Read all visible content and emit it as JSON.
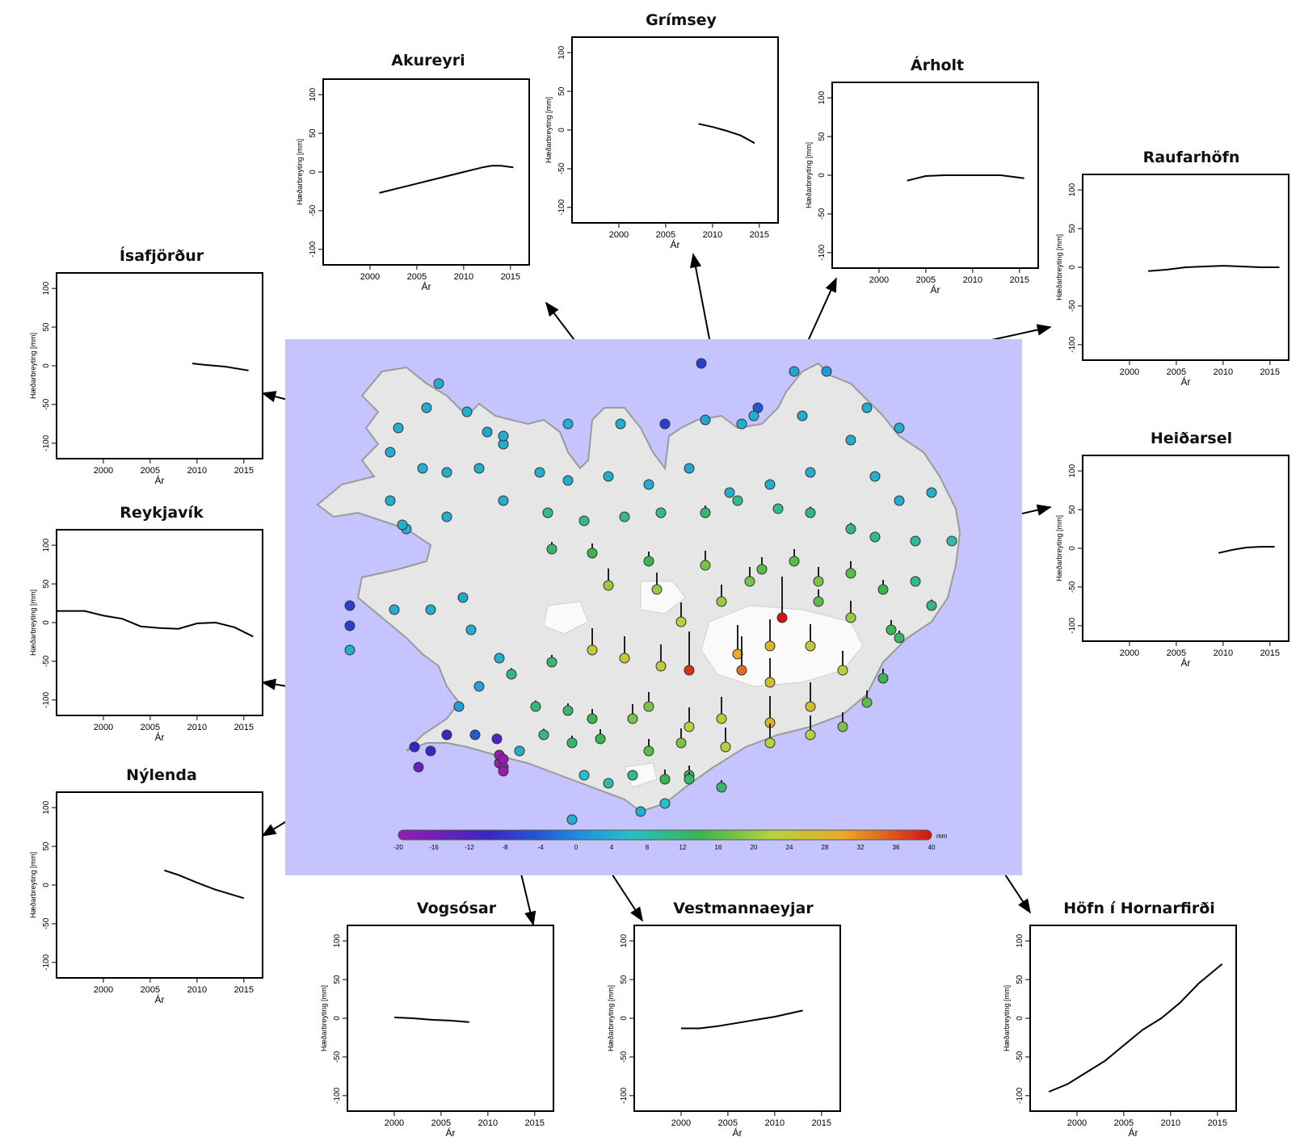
{
  "colors": {
    "sea": "#c6c4ff",
    "land": "#e6e6e6",
    "land_edge": "#9a9a9a",
    "glacier": "#fafafa",
    "line": "#000000",
    "frame": "#000000"
  },
  "colorbar": {
    "ticks": [
      "-20",
      "-16",
      "-12",
      "-8",
      "-4",
      "0",
      "4",
      "8",
      "12",
      "16",
      "20",
      "24",
      "28",
      "32",
      "36",
      "40"
    ],
    "unit": "mm"
  },
  "chart_data": [
    {
      "id": "akureyri",
      "type": "line",
      "title": "Akureyri",
      "xlabel": "Ár",
      "ylabel": "Hæðarbreyting [mm]",
      "xlim": [
        1995,
        2017
      ],
      "ylim": [
        -120,
        120
      ],
      "xticks": [
        "2000",
        "2005",
        "2010",
        "2015"
      ],
      "yticks": [
        "-100",
        "-50",
        "0",
        "50",
        "100"
      ],
      "x": [
        2001,
        2004,
        2007,
        2010,
        2012,
        2013,
        2014,
        2015.3
      ],
      "y": [
        -27,
        -18,
        -9,
        0,
        6,
        8,
        8,
        6
      ]
    },
    {
      "id": "grimsey",
      "type": "line",
      "title": "Grímsey",
      "xlabel": "Ár",
      "ylabel": "Hæðarbreyting [mm]",
      "xlim": [
        1995,
        2017
      ],
      "ylim": [
        -120,
        120
      ],
      "xticks": [
        "2000",
        "2005",
        "2010",
        "2015"
      ],
      "yticks": [
        "-100",
        "-50",
        "0",
        "50",
        "100"
      ],
      "x": [
        2008.5,
        2010,
        2011.5,
        2013,
        2014.5
      ],
      "y": [
        8,
        4,
        -1,
        -7,
        -17
      ]
    },
    {
      "id": "arholt",
      "type": "line",
      "title": "Árholt",
      "xlabel": "Ár",
      "ylabel": "Hæðarbreyting [mm]",
      "xlim": [
        1995,
        2017
      ],
      "ylim": [
        -120,
        120
      ],
      "xticks": [
        "2000",
        "2005",
        "2010",
        "2015"
      ],
      "yticks": [
        "-100",
        "-50",
        "0",
        "50",
        "100"
      ],
      "x": [
        2003,
        2005,
        2007,
        2009,
        2011,
        2013,
        2015.5
      ],
      "y": [
        -7,
        -1,
        0,
        0,
        0,
        0,
        -4
      ]
    },
    {
      "id": "raufarhofn",
      "type": "line",
      "title": "Raufarhöfn",
      "xlabel": "Ár",
      "ylabel": "Hæðarbreyting [mm]",
      "xlim": [
        1995,
        2017
      ],
      "ylim": [
        -120,
        120
      ],
      "xticks": [
        "2000",
        "2005",
        "2010",
        "2015"
      ],
      "yticks": [
        "-100",
        "-50",
        "0",
        "50",
        "100"
      ],
      "x": [
        2002,
        2004,
        2006,
        2008,
        2010,
        2012,
        2014,
        2016
      ],
      "y": [
        -5,
        -3,
        0,
        1,
        2,
        1,
        0,
        0
      ]
    },
    {
      "id": "isafjordur",
      "type": "line",
      "title": "Ísafjörður",
      "xlabel": "Ár",
      "ylabel": "Hæðarbreyting [mm]",
      "xlim": [
        1995,
        2017
      ],
      "ylim": [
        -120,
        120
      ],
      "xticks": [
        "2000",
        "2005",
        "2010",
        "2015"
      ],
      "yticks": [
        "-100",
        "-50",
        "0",
        "50",
        "100"
      ],
      "x": [
        2009.5,
        2011,
        2013,
        2015.5
      ],
      "y": [
        3,
        1,
        -1,
        -6
      ]
    },
    {
      "id": "heidarsel",
      "type": "line",
      "title": "Heiðarsel",
      "xlabel": "Ár",
      "ylabel": "Hæðarbreyting [mm]",
      "xlim": [
        1995,
        2017
      ],
      "ylim": [
        -120,
        120
      ],
      "xticks": [
        "2000",
        "2005",
        "2010",
        "2015"
      ],
      "yticks": [
        "-100",
        "-50",
        "0",
        "50",
        "100"
      ],
      "x": [
        2009.5,
        2011,
        2012.5,
        2014,
        2015.5
      ],
      "y": [
        -6,
        -2,
        1,
        2,
        2
      ]
    },
    {
      "id": "reykjavik",
      "type": "line",
      "title": "Reykjavík",
      "xlabel": "Ár",
      "ylabel": "Hæðarbreyting [mm]",
      "xlim": [
        1995,
        2017
      ],
      "ylim": [
        -120,
        120
      ],
      "xticks": [
        "2000",
        "2005",
        "2010",
        "2015"
      ],
      "yticks": [
        "-100",
        "-50",
        "0",
        "50",
        "100"
      ],
      "x": [
        1995,
        1998,
        2000,
        2002,
        2004,
        2006,
        2008,
        2010,
        2012,
        2014,
        2016
      ],
      "y": [
        15,
        15,
        9,
        5,
        -5,
        -7,
        -8,
        -1,
        0,
        -6,
        -18
      ]
    },
    {
      "id": "nylenda",
      "type": "line",
      "title": "Nýlenda",
      "xlabel": "Ár",
      "ylabel": "Hæðarbreyting [mm]",
      "xlim": [
        1995,
        2017
      ],
      "ylim": [
        -120,
        120
      ],
      "xticks": [
        "2000",
        "2005",
        "2010",
        "2015"
      ],
      "yticks": [
        "-100",
        "-50",
        "0",
        "50",
        "100"
      ],
      "x": [
        2006.5,
        2008,
        2010,
        2012,
        2015
      ],
      "y": [
        19,
        13,
        3,
        -6,
        -17
      ]
    },
    {
      "id": "vogsosar",
      "type": "line",
      "title": "Vogsósar",
      "xlabel": "Ár",
      "ylabel": "Hæðarbreyting [mm]",
      "xlim": [
        1995,
        2017
      ],
      "ylim": [
        -120,
        120
      ],
      "xticks": [
        "2000",
        "2005",
        "2010",
        "2015"
      ],
      "yticks": [
        "-100",
        "-50",
        "0",
        "50",
        "100"
      ],
      "x": [
        2000,
        2002,
        2004,
        2006,
        2008
      ],
      "y": [
        1,
        0,
        -2,
        -3,
        -5
      ]
    },
    {
      "id": "vestmannaeyjar",
      "type": "line",
      "title": "Vestmannaeyjar",
      "xlabel": "Ár",
      "ylabel": "Hæðarbreyting [mm]",
      "xlim": [
        1995,
        2017
      ],
      "ylim": [
        -120,
        120
      ],
      "xticks": [
        "2000",
        "2005",
        "2010",
        "2015"
      ],
      "yticks": [
        "-100",
        "-50",
        "0",
        "50",
        "100"
      ],
      "x": [
        2000,
        2002,
        2004,
        2006,
        2008,
        2010,
        2013
      ],
      "y": [
        -13,
        -13,
        -10,
        -6,
        -2,
        2,
        10
      ]
    },
    {
      "id": "hofn",
      "type": "line",
      "title": "Höfn í Hornarfirði",
      "xlabel": "Ár",
      "ylabel": "Hæðarbreyting [mm]",
      "xlim": [
        1995,
        2017
      ],
      "ylim": [
        -120,
        120
      ],
      "xticks": [
        "2000",
        "2005",
        "2010",
        "2015"
      ],
      "yticks": [
        "-100",
        "-50",
        "0",
        "50",
        "100"
      ],
      "x": [
        1997,
        1999,
        2001,
        2003,
        2005,
        2007,
        2009,
        2011,
        2013,
        2015.5
      ],
      "y": [
        -95,
        -85,
        -70,
        -55,
        -35,
        -15,
        0,
        20,
        45,
        70
      ]
    }
  ]
}
